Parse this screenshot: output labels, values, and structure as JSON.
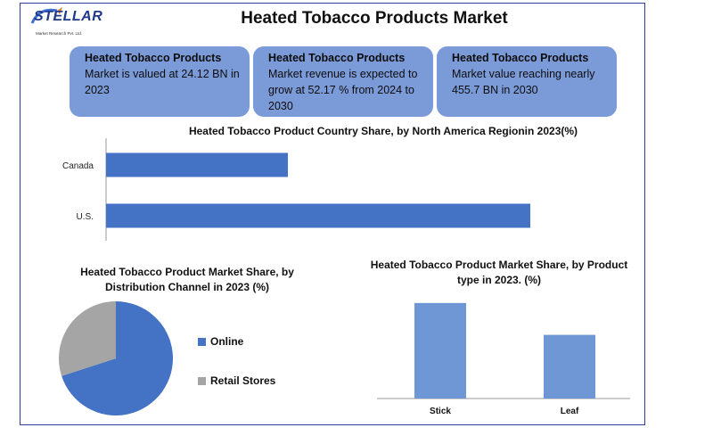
{
  "header": {
    "title": "Heated Tobacco Products Market",
    "logo_text": "STELLAR",
    "logo_subtext": "Market Research Pvt. Ltd."
  },
  "kpis": [
    {
      "heading": "Heated Tobacco Products",
      "text": "Market is valued at 24.12 BN in 2023"
    },
    {
      "heading": "Heated Tobacco Products",
      "text": "Market revenue is expected to grow at 52.17 % from 2024 to 2030"
    },
    {
      "heading": "Heated Tobacco Products",
      "text": "Market value reaching nearly 455.7 BN in 2030"
    }
  ],
  "colors": {
    "accent": "#4472c4",
    "kpi_bg": "#7b9ad8",
    "secondary": "#a5a5a5",
    "bar_light": "#6f97d6",
    "frame": "#2f3e9e"
  },
  "chart_data": [
    {
      "type": "bar",
      "orientation": "horizontal",
      "title": "Heated Tobacco  Product Country Share, by North America Regionin 2023(%)",
      "categories": [
        "Canada",
        "U.S."
      ],
      "values": [
        30,
        70
      ],
      "xlim": [
        0,
        100
      ],
      "grid": false
    },
    {
      "type": "pie",
      "title": "Heated Tobacco Product Market Share, by Distribution Channel  in 2023 (%)",
      "labels": [
        "Online",
        "Retail Stores"
      ],
      "values": [
        70,
        30
      ],
      "legend": "right"
    },
    {
      "type": "bar",
      "title": "Heated Tobacco Product Market Share, by Product type in 2023. (%)",
      "categories": [
        "Stick",
        "Leaf"
      ],
      "values": [
        60,
        40
      ],
      "ylim": [
        0,
        70
      ],
      "grid": false
    }
  ]
}
